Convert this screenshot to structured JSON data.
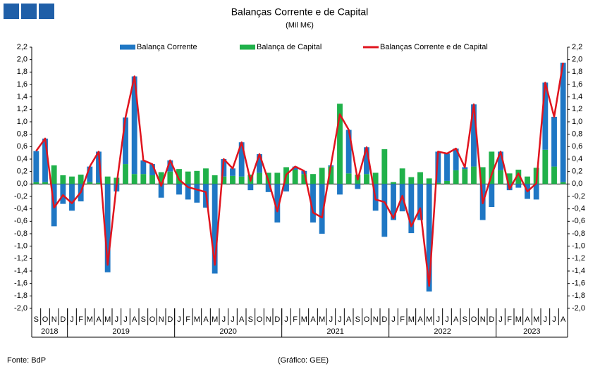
{
  "chart_data": {
    "type": "bar",
    "title": "Balanças Corrente e de Capital",
    "subtitle": "(Mil M€)",
    "source": "Fonte: BdP",
    "credit": "(Gráfico: GEE)",
    "categories": [
      "S",
      "O",
      "N",
      "D",
      "J",
      "F",
      "M",
      "A",
      "M",
      "J",
      "J",
      "A",
      "S",
      "O",
      "N",
      "D",
      "J",
      "F",
      "M",
      "A",
      "M",
      "J",
      "J",
      "A",
      "S",
      "O",
      "N",
      "D",
      "J",
      "F",
      "M",
      "A",
      "M",
      "J",
      "J",
      "A",
      "S",
      "O",
      "N",
      "D",
      "J",
      "F",
      "M",
      "A",
      "M",
      "J",
      "J",
      "A",
      "S",
      "O",
      "N",
      "D",
      "J",
      "F",
      "M",
      "A",
      "M",
      "J",
      "J",
      "A"
    ],
    "years": [
      "2018",
      "2019",
      "2020",
      "2021",
      "2022",
      "2023"
    ],
    "series": [
      {
        "name": "Balança Corrente",
        "color": "#1f77c4",
        "stack": true,
        "values": [
          0.5,
          0.7,
          -0.68,
          -0.32,
          -0.43,
          -0.28,
          0.25,
          0.5,
          -1.42,
          -0.12,
          0.75,
          1.57,
          0.22,
          0.18,
          -0.22,
          0.18,
          -0.17,
          -0.25,
          -0.3,
          -0.38,
          -1.44,
          0.28,
          0.12,
          0.55,
          -0.1,
          0.3,
          -0.13,
          -0.62,
          -0.12,
          0.05,
          0.05,
          -0.62,
          -0.8,
          0.02,
          -0.17,
          0.7,
          -0.08,
          0.43,
          -0.43,
          -0.85,
          -0.58,
          -0.44,
          -0.79,
          -0.58,
          -1.73,
          0.5,
          0.44,
          0.35,
          0.03,
          1.0,
          -0.58,
          -0.37,
          0.3,
          -0.1,
          -0.06,
          -0.24,
          -0.25,
          1.08,
          0.8,
          1.92
        ]
      },
      {
        "name": "Balança de Capital",
        "color": "#20b14a",
        "stack": true,
        "values": [
          0.03,
          0.03,
          0.3,
          0.14,
          0.12,
          0.15,
          0.03,
          0.02,
          0.12,
          0.1,
          0.32,
          0.16,
          0.16,
          0.14,
          0.19,
          0.2,
          0.24,
          0.2,
          0.21,
          0.25,
          0.14,
          0.12,
          0.13,
          0.12,
          0.15,
          0.18,
          0.18,
          0.18,
          0.27,
          0.23,
          0.16,
          0.16,
          0.26,
          0.28,
          1.29,
          0.17,
          0.15,
          0.16,
          0.18,
          0.56,
          0.03,
          0.25,
          0.11,
          0.19,
          0.09,
          0.02,
          0.05,
          0.22,
          0.24,
          0.28,
          0.27,
          0.52,
          0.22,
          0.17,
          0.23,
          0.12,
          0.26,
          0.55,
          0.28,
          0.03
        ]
      },
      {
        "name": "Balanças Corrente e de Capital",
        "color": "#e0141e",
        "kind": "line",
        "values": [
          0.53,
          0.73,
          -0.38,
          -0.18,
          -0.31,
          -0.13,
          0.28,
          0.52,
          -1.3,
          -0.02,
          1.07,
          1.73,
          0.38,
          0.32,
          -0.03,
          0.38,
          0.07,
          -0.05,
          -0.09,
          -0.13,
          -1.3,
          0.4,
          0.25,
          0.67,
          0.05,
          0.48,
          0.05,
          -0.44,
          0.15,
          0.28,
          0.21,
          -0.46,
          -0.54,
          0.3,
          1.12,
          0.87,
          0.07,
          0.59,
          -0.25,
          -0.29,
          -0.55,
          -0.19,
          -0.68,
          -0.39,
          -1.64,
          0.52,
          0.49,
          0.57,
          0.27,
          1.28,
          -0.31,
          0.15,
          0.52,
          -0.08,
          0.17,
          -0.12,
          0.01,
          1.63,
          1.08,
          1.95
        ]
      }
    ],
    "ylim": [
      -2.0,
      2.2
    ],
    "yticks": [
      {
        "value": -2.0,
        "label": "-2,0"
      },
      {
        "value": -1.8,
        "label": "-1,8"
      },
      {
        "value": -1.6,
        "label": "-1,6"
      },
      {
        "value": -1.4,
        "label": "-1,4"
      },
      {
        "value": -1.2,
        "label": "-1,2"
      },
      {
        "value": -1.0,
        "label": "-1,0"
      },
      {
        "value": -0.8,
        "label": "-0,8"
      },
      {
        "value": -0.6,
        "label": "-0,6"
      },
      {
        "value": -0.4,
        "label": "-0,4"
      },
      {
        "value": -0.2,
        "label": "-0,2"
      },
      {
        "value": 0,
        "label": "0,0"
      },
      {
        "value": 0.2,
        "label": "0,2"
      },
      {
        "value": 0.4,
        "label": "0,4"
      },
      {
        "value": 0.6,
        "label": "0,6"
      },
      {
        "value": 0.8,
        "label": "0,8"
      },
      {
        "value": 1.0,
        "label": "1,0"
      },
      {
        "value": 1.2,
        "label": "1,2"
      },
      {
        "value": 1.4,
        "label": "1,4"
      },
      {
        "value": 1.6,
        "label": "1,6"
      },
      {
        "value": 1.8,
        "label": "1,8"
      },
      {
        "value": 2.0,
        "label": "2,0"
      },
      {
        "value": 2.2,
        "label": "2,2"
      }
    ],
    "legend": "top",
    "grid": false
  }
}
